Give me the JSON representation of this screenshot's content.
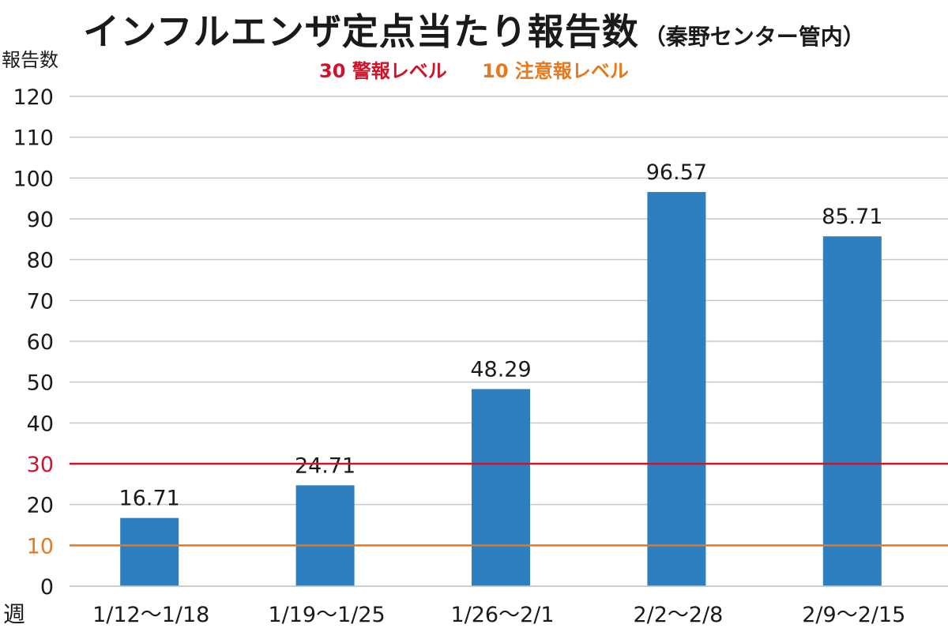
{
  "chart_data": {
    "type": "bar",
    "title": "インフルエンザ定点当たり報告数",
    "subtitle": "（秦野センター管内）",
    "ylabel": "報告数",
    "xlabel": "週",
    "categories": [
      "1/12～1/18",
      "1/19～1/25",
      "1/26～2/1",
      "2/2～2/8",
      "2/9～2/15"
    ],
    "values": [
      16.71,
      24.71,
      48.29,
      96.57,
      85.71
    ],
    "value_labels": [
      "16.71",
      "24.71",
      "48.29",
      "96.57",
      "85.71"
    ],
    "ylim": [
      0,
      120
    ],
    "yticks": [
      0,
      10,
      20,
      30,
      40,
      50,
      60,
      70,
      80,
      90,
      100,
      110,
      120
    ],
    "grid": true,
    "bar_color": "#2e7fc0",
    "reference_lines": [
      {
        "value": 30,
        "label": "30 警報レベル",
        "color": "#d0122a"
      },
      {
        "value": 10,
        "label": "10 注意報レベル",
        "color": "#e8781c"
      }
    ],
    "legend_placement": "top-center"
  }
}
